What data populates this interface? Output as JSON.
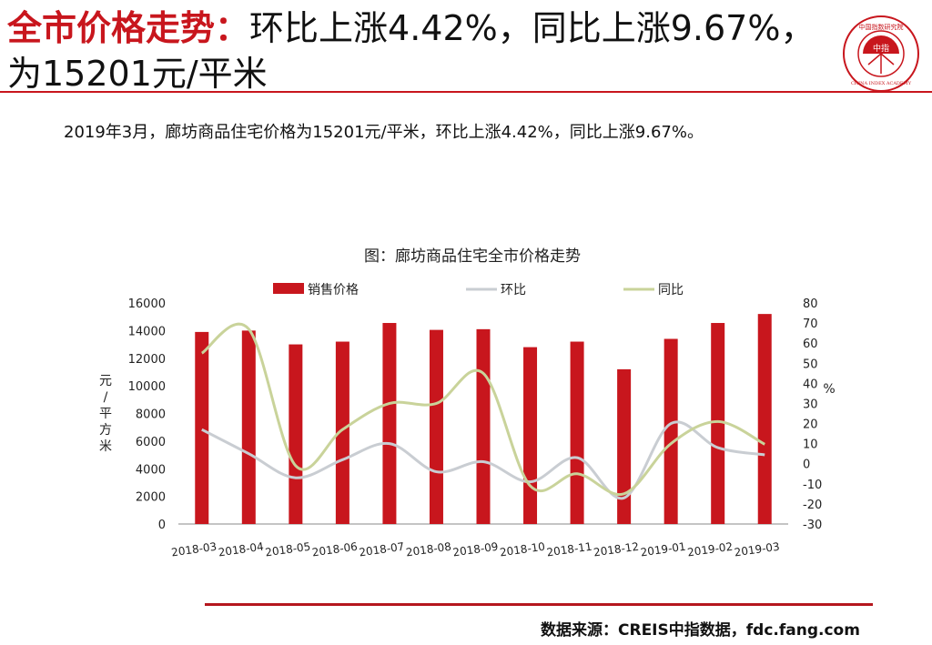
{
  "slide": {
    "title_highlight": "全市价格走势：",
    "title_rest": "环比上涨4.42%，同比上涨9.67%，为15201元/平米",
    "summary": "2019年3月，廊坊商品住宅价格为15201元/平米，环比上涨4.42%，同比上涨9.67%。",
    "source": "数据来源：CREIS中指数据，fdc.fang.com",
    "logo": {
      "top_text": "中国指数研究院",
      "center_text": "中指",
      "bottom_text": "CHINA INDEX ACADEMY"
    }
  },
  "colors": {
    "brand_red": "#c8161d",
    "bar": "#c8161d",
    "mom_line": "#c9cdd2",
    "yoy_line": "#c9d39a"
  },
  "chart_data": {
    "type": "bar",
    "title": "图：廊坊商品住宅全市价格走势",
    "categories": [
      "2018-03",
      "2018-04",
      "2018-05",
      "2018-06",
      "2018-07",
      "2018-08",
      "2018-09",
      "2018-10",
      "2018-11",
      "2018-12",
      "2019-01",
      "2019-02",
      "2019-03"
    ],
    "y_left_label": "元/平方米",
    "y_right_label": "%",
    "y_left_ticks": [
      0,
      2000,
      4000,
      6000,
      8000,
      10000,
      12000,
      14000,
      16000
    ],
    "y_right_ticks": [
      -30,
      -20,
      -10,
      0,
      10,
      20,
      30,
      40,
      50,
      60,
      70,
      80
    ],
    "ylim_left": [
      0,
      16000
    ],
    "ylim_right": [
      -30,
      80
    ],
    "legend_position": "top",
    "series": [
      {
        "name": "销售价格",
        "kind": "bar",
        "axis": "left",
        "values": [
          13900,
          14000,
          13000,
          13200,
          14550,
          14050,
          14100,
          12800,
          13200,
          11200,
          13400,
          14550,
          15201
        ]
      },
      {
        "name": "环比",
        "kind": "line",
        "axis": "right",
        "values": [
          17,
          5,
          -7,
          2,
          10,
          -4,
          1,
          -9,
          3,
          -17,
          20,
          8,
          4.42
        ]
      },
      {
        "name": "同比",
        "kind": "line",
        "axis": "right",
        "values": [
          55,
          67,
          -1,
          17,
          30,
          30,
          45,
          -11,
          -5,
          -15,
          10,
          21,
          9.67
        ]
      }
    ]
  }
}
